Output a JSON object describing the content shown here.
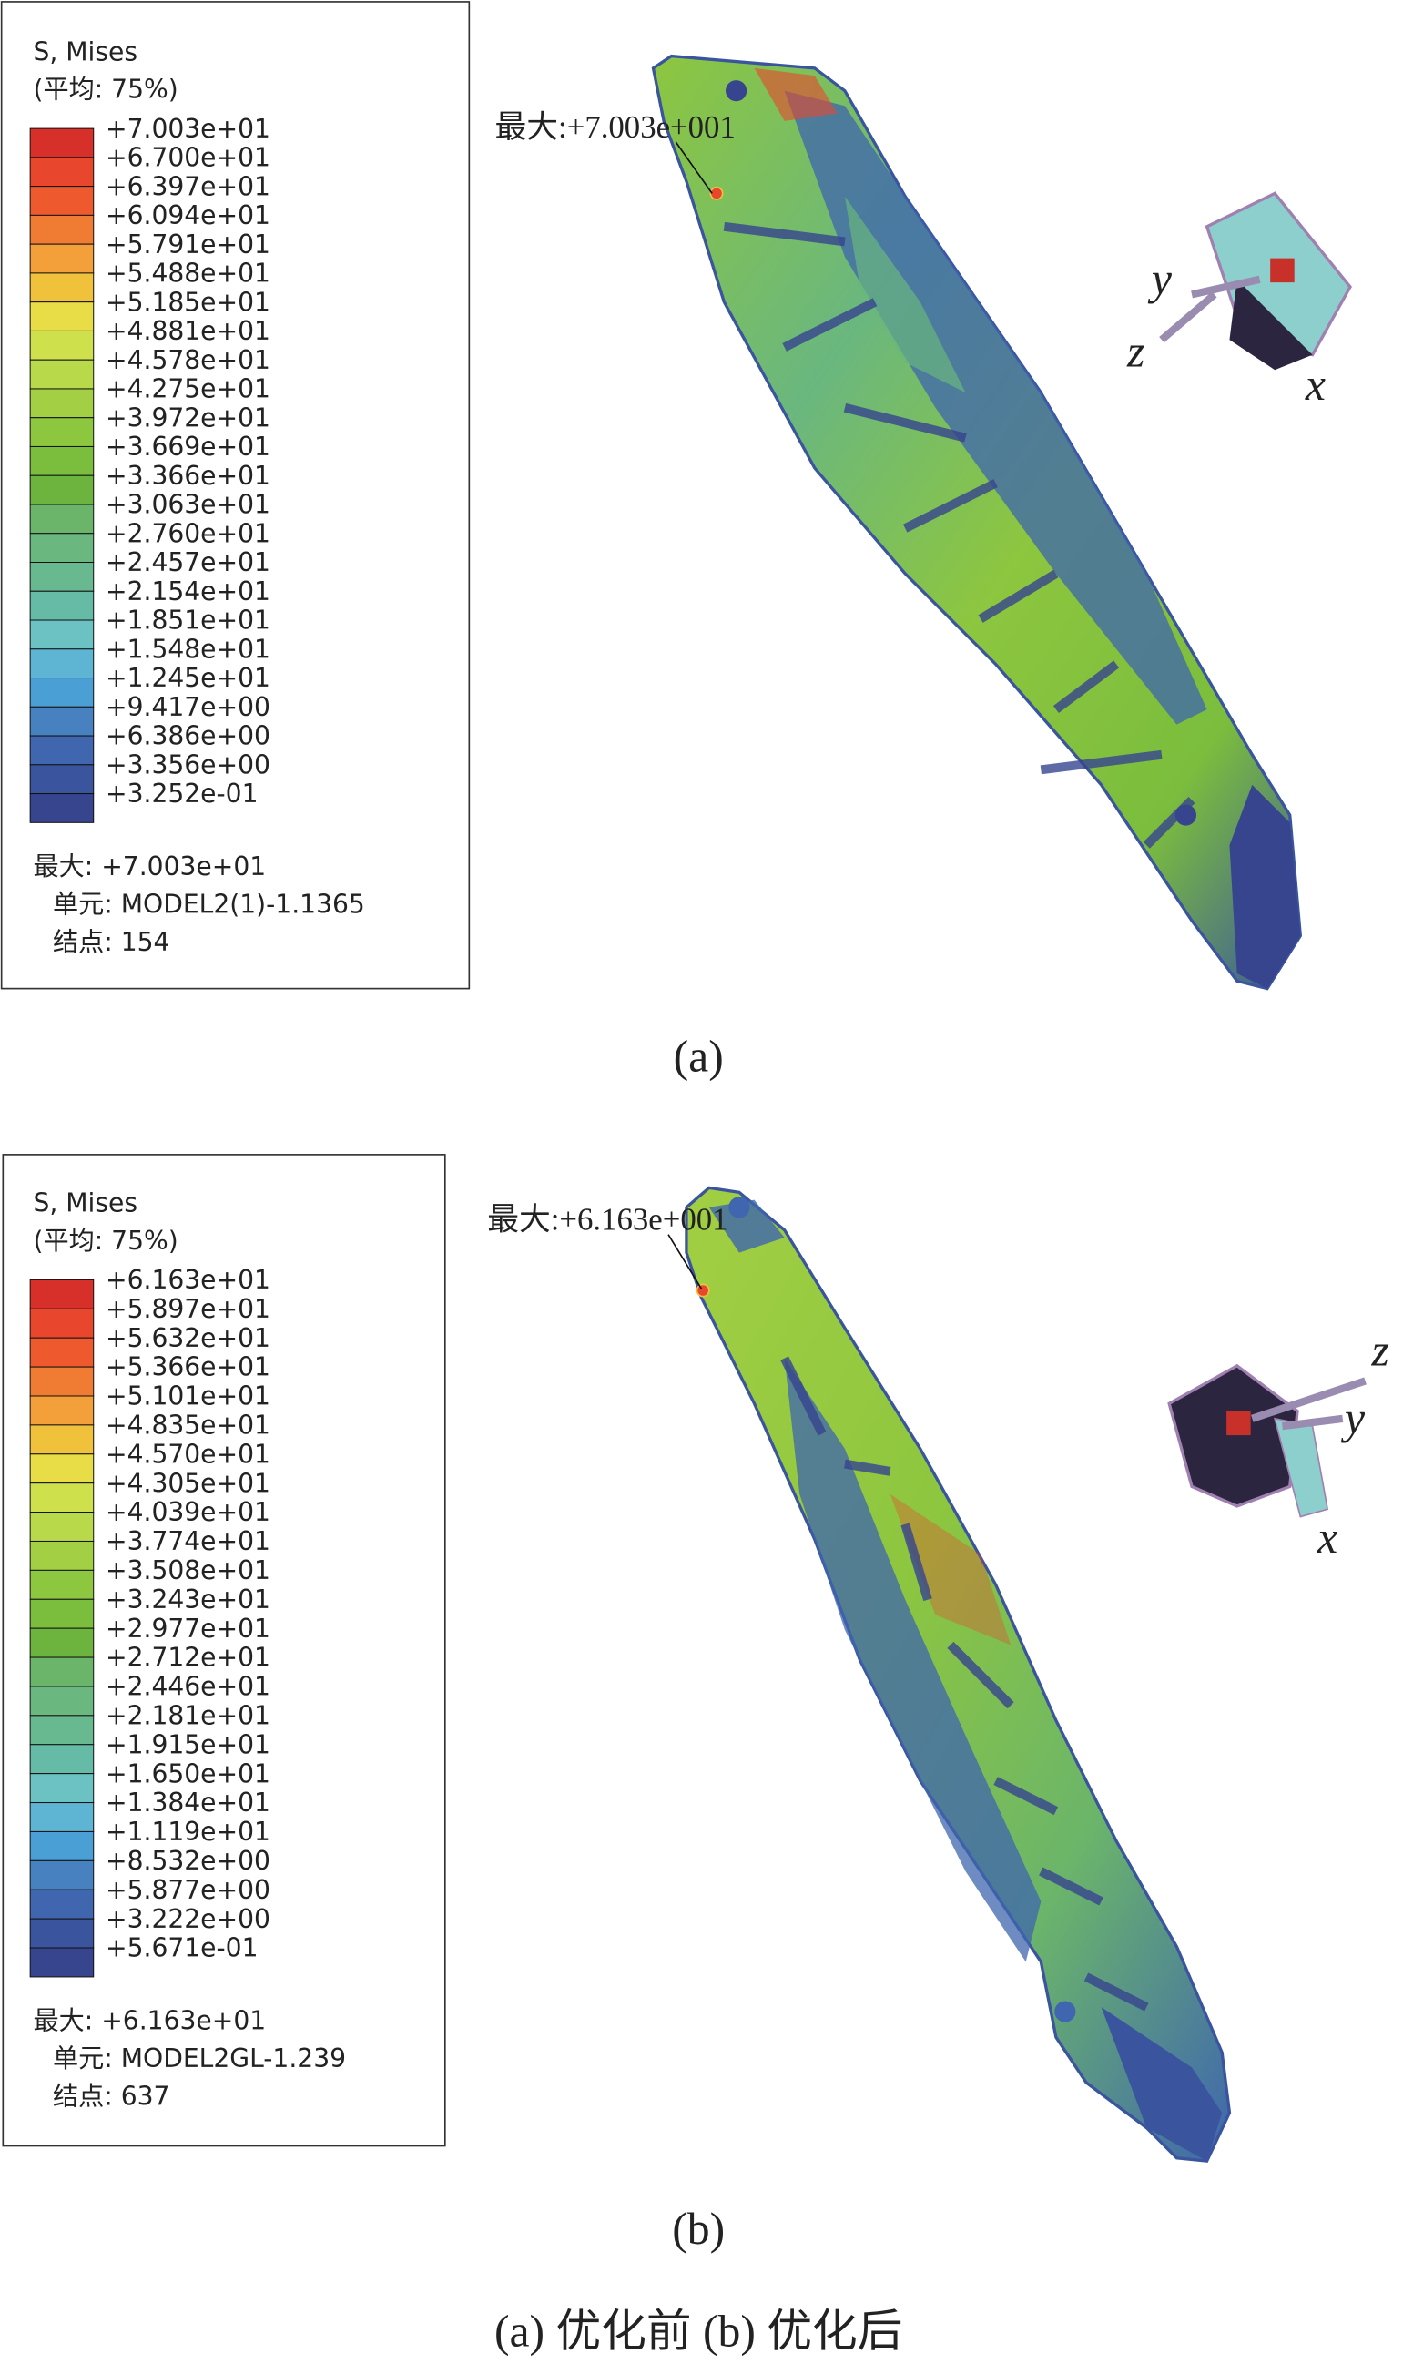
{
  "panels": [
    {
      "legend": {
        "title": "S, Mises",
        "subtitle": "(平均: 75%)",
        "labels": [
          "+7.003e+01",
          "+6.700e+01",
          "+6.397e+01",
          "+6.094e+01",
          "+5.791e+01",
          "+5.488e+01",
          "+5.185e+01",
          "+4.881e+01",
          "+4.578e+01",
          "+4.275e+01",
          "+3.972e+01",
          "+3.669e+01",
          "+3.366e+01",
          "+3.063e+01",
          "+2.760e+01",
          "+2.457e+01",
          "+2.154e+01",
          "+1.851e+01",
          "+1.548e+01",
          "+1.245e+01",
          "+9.417e+00",
          "+6.386e+00",
          "+3.356e+00",
          "+3.252e-01"
        ],
        "max": "最大: +7.003e+01",
        "element": "单元: MODEL2(1)-1.1365",
        "node": "结点: 154"
      },
      "annotation": "最大:+7.003e+001",
      "axes": [
        "x",
        "y",
        "z"
      ],
      "caption": "(a)"
    },
    {
      "legend": {
        "title": "S, Mises",
        "subtitle": "(平均: 75%)",
        "labels": [
          "+6.163e+01",
          "+5.897e+01",
          "+5.632e+01",
          "+5.366e+01",
          "+5.101e+01",
          "+4.835e+01",
          "+4.570e+01",
          "+4.305e+01",
          "+4.039e+01",
          "+3.774e+01",
          "+3.508e+01",
          "+3.243e+01",
          "+2.977e+01",
          "+2.712e+01",
          "+2.446e+01",
          "+2.181e+01",
          "+1.915e+01",
          "+1.650e+01",
          "+1.384e+01",
          "+1.119e+01",
          "+8.532e+00",
          "+5.877e+00",
          "+3.222e+00",
          "+5.671e-01"
        ],
        "max": "最大: +6.163e+01",
        "element": "单元: MODEL2GL-1.239",
        "node": "结点: 637"
      },
      "annotation": "最大:+6.163e+001",
      "axes": [
        "x",
        "y",
        "z"
      ],
      "caption": "(b)"
    }
  ],
  "caption": "(a) 优化前    (b) 优化后"
}
